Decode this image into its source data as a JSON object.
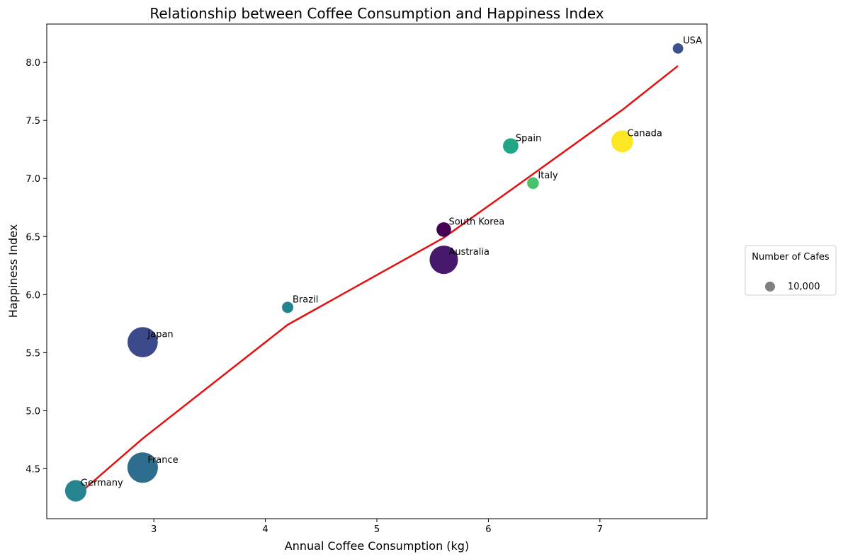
{
  "chart_data": {
    "type": "scatter",
    "title": "Relationship between Coffee Consumption and Happiness Index",
    "xlabel": "Annual Coffee Consumption (kg)",
    "ylabel": "Happiness Index",
    "xlim": [
      2.04,
      7.96
    ],
    "ylim": [
      4.07,
      8.33
    ],
    "xticks": [
      3,
      4,
      5,
      6,
      7
    ],
    "yticks": [
      4.5,
      5.0,
      5.5,
      6.0,
      6.5,
      7.0,
      7.5,
      8.0
    ],
    "xtick_labels": [
      "3",
      "4",
      "5",
      "6",
      "7"
    ],
    "ytick_labels": [
      "4.5",
      "5.0",
      "5.5",
      "6.0",
      "6.5",
      "7.0",
      "7.5",
      "8.0"
    ],
    "grid": false,
    "points": [
      {
        "label": "USA",
        "x": 7.7,
        "y": 8.12,
        "cafes": 3000,
        "color": "#3b528b"
      },
      {
        "label": "Spain",
        "x": 6.2,
        "y": 7.28,
        "cafes": 6500,
        "color": "#21a685"
      },
      {
        "label": "Canada",
        "x": 7.2,
        "y": 7.32,
        "cafes": 13000,
        "color": "#fde725"
      },
      {
        "label": "Italy",
        "x": 6.4,
        "y": 6.96,
        "cafes": 3800,
        "color": "#4ac16d"
      },
      {
        "label": "South Korea",
        "x": 5.6,
        "y": 6.56,
        "cafes": 5800,
        "color": "#440154"
      },
      {
        "label": "Australia",
        "x": 5.6,
        "y": 6.3,
        "cafes": 22000,
        "color": "#46196d"
      },
      {
        "label": "Brazil",
        "x": 4.2,
        "y": 5.89,
        "cafes": 3500,
        "color": "#23838e"
      },
      {
        "label": "Japan",
        "x": 2.9,
        "y": 5.59,
        "cafes": 25000,
        "color": "#3b4a8a"
      },
      {
        "label": "France",
        "x": 2.9,
        "y": 4.51,
        "cafes": 25500,
        "color": "#2e6d8e"
      },
      {
        "label": "Germany",
        "x": 2.3,
        "y": 4.31,
        "cafes": 12500,
        "color": "#25848e"
      }
    ],
    "trend_line": {
      "color": "#e50f0f",
      "x": [
        2.3,
        2.9,
        4.2,
        5.6,
        6.2,
        7.2,
        7.7
      ],
      "y": [
        4.26,
        4.76,
        5.74,
        6.49,
        6.9,
        7.59,
        7.97
      ]
    },
    "legend": {
      "title": "Number of Cafes",
      "entry_label": "10,000",
      "entry_value": 10000,
      "marker_color": "#808080",
      "placement": "right"
    }
  }
}
